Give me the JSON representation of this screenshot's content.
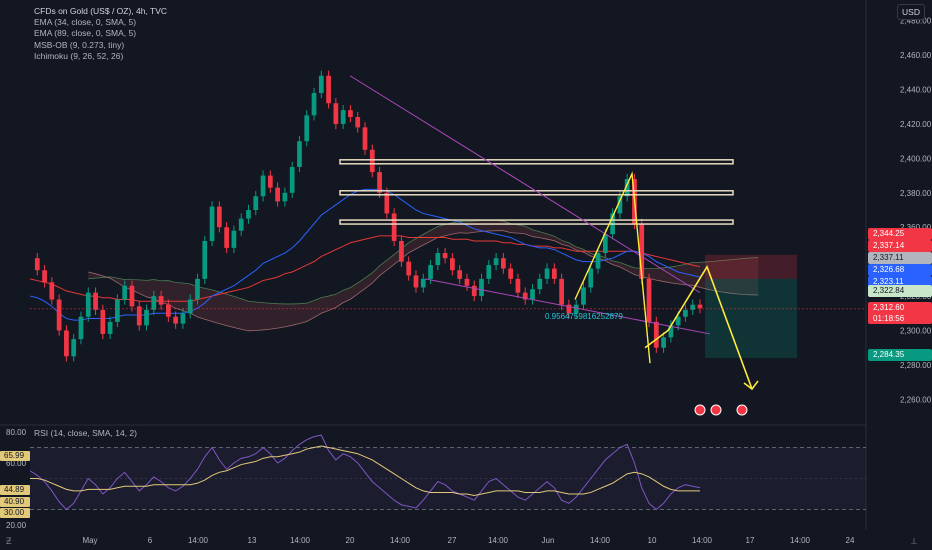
{
  "legend": {
    "title": "CFDs on Gold (US$ / OZ), 4h, TVC",
    "indicators": [
      "EMA (34, close, 0, SMA, 5)",
      "EMA (89, close, 0, SMA, 5)",
      "MSB-OB (9, 0.273, tiny)",
      "Ichimoku (9, 26, 52, 26)"
    ]
  },
  "currency": "USD",
  "rsi_title": "RSI (14, close, SMA, 14, 2)",
  "annotation": "0.9564759816252879",
  "price_tags": {
    "t1": "2,344.25",
    "t2": "2,337.14",
    "t3": "2,337.11",
    "t4": "2,326.68",
    "t5": "2,323.11",
    "t6": "2,322.84",
    "t7_price": "2,312.60",
    "t7_time": "01:18:56",
    "t8": "2,284.35"
  },
  "rsi_tags": {
    "a": "65.99",
    "b": "44.89",
    "c": "40.90",
    "d": "30.00"
  },
  "colors": {
    "bg": "#131722",
    "up": "#089981",
    "down": "#f23645",
    "ema34": "#2962ff",
    "ema89": "#e53935",
    "cloud_a": "#3a4a3a",
    "cloud_b": "#4a2a33",
    "proj": "#ffeb3b",
    "rsi": "#7e57c2",
    "rsi_ma": "#e2c97a",
    "wedge": "#ab47bc"
  },
  "chart_data": {
    "type": "line",
    "title": "CFDs on Gold (US$ / OZ), 4h, TVC",
    "y_ticks": [
      2260,
      2280,
      2300,
      2320,
      2340,
      2360,
      2380,
      2400,
      2420,
      2440,
      2460,
      2480
    ],
    "y_tick_labels": [
      "2,260.00",
      "2,280.00",
      "2,300.00",
      "2,320.00",
      "2,340.00",
      "2,360.00",
      "2,380.00",
      "2,400.00",
      "2,420.00",
      "2,440.00",
      "2,460.00",
      "2,480.00"
    ],
    "ylim": [
      2248,
      2492
    ],
    "x_tick_labels": [
      "May",
      "6",
      "14:00",
      "13",
      "14:00",
      "20",
      "14:00",
      "27",
      "14:00",
      "Jun",
      "14:00",
      "10",
      "14:00",
      "17",
      "14:00",
      "24"
    ],
    "price_series": [
      2342,
      2335,
      2328,
      2318,
      2300,
      2285,
      2295,
      2308,
      2322,
      2312,
      2298,
      2305,
      2318,
      2326,
      2314,
      2303,
      2312,
      2320,
      2315,
      2308,
      2304,
      2310,
      2318,
      2330,
      2352,
      2372,
      2360,
      2348,
      2358,
      2365,
      2370,
      2378,
      2390,
      2383,
      2375,
      2380,
      2395,
      2410,
      2425,
      2438,
      2448,
      2432,
      2420,
      2428,
      2424,
      2418,
      2405,
      2392,
      2380,
      2368,
      2352,
      2340,
      2332,
      2325,
      2330,
      2338,
      2345,
      2342,
      2335,
      2330,
      2326,
      2320,
      2330,
      2338,
      2342,
      2336,
      2330,
      2322,
      2318,
      2324,
      2330,
      2336,
      2330,
      2315,
      2310,
      2315,
      2325,
      2336,
      2345,
      2356,
      2368,
      2378,
      2388,
      2362,
      2330,
      2305,
      2290,
      2296,
      2303,
      2308,
      2312,
      2315,
      2313
    ],
    "ema34": [
      2320,
      2319,
      2317,
      2314,
      2310,
      2307,
      2306,
      2306,
      2307,
      2307,
      2307,
      2307,
      2308,
      2309,
      2309,
      2309,
      2309,
      2310,
      2310,
      2310,
      2310,
      2310,
      2311,
      2313,
      2316,
      2320,
      2322,
      2324,
      2326,
      2329,
      2332,
      2335,
      2339,
      2341,
      2343,
      2345,
      2348,
      2352,
      2357,
      2362,
      2367,
      2370,
      2373,
      2376,
      2379,
      2381,
      2382,
      2382,
      2382,
      2381,
      2379,
      2376,
      2373,
      2370,
      2368,
      2367,
      2366,
      2365,
      2364,
      2363,
      2361,
      2359,
      2358,
      2357,
      2356,
      2355,
      2354,
      2352,
      2350,
      2349,
      2348,
      2348,
      2347,
      2345,
      2343,
      2341,
      2340,
      2340,
      2340,
      2341,
      2342,
      2344,
      2346,
      2346,
      2345,
      2343,
      2340,
      2338,
      2336,
      2334,
      2333,
      2332,
      2331
    ],
    "ema89": [
      2330,
      2329,
      2328,
      2327,
      2325,
      2323,
      2322,
      2321,
      2320,
      2320,
      2319,
      2319,
      2318,
      2318,
      2318,
      2317,
      2317,
      2317,
      2317,
      2317,
      2317,
      2317,
      2317,
      2318,
      2319,
      2320,
      2321,
      2322,
      2323,
      2324,
      2325,
      2327,
      2329,
      2330,
      2331,
      2333,
      2334,
      2336,
      2338,
      2340,
      2343,
      2345,
      2347,
      2349,
      2351,
      2352,
      2353,
      2354,
      2355,
      2355,
      2355,
      2355,
      2354,
      2354,
      2354,
      2354,
      2354,
      2354,
      2353,
      2353,
      2353,
      2352,
      2352,
      2352,
      2352,
      2351,
      2351,
      2350,
      2350,
      2349,
      2349,
      2349,
      2348,
      2348,
      2347,
      2346,
      2346,
      2346,
      2346,
      2346,
      2346,
      2346,
      2346,
      2346,
      2345,
      2344,
      2343,
      2342,
      2341,
      2340,
      2339,
      2338,
      2337
    ],
    "sr_levels": [
      2398,
      2380,
      2363
    ],
    "projection": [
      [
        2312,
        2312
      ],
      [
        2338,
        2330
      ],
      [
        2265,
        2270
      ]
    ],
    "rsi": {
      "ylim": [
        20,
        80
      ],
      "ticks": [
        80,
        60,
        20
      ],
      "levels": [
        30,
        70
      ],
      "values": [
        55,
        52,
        48,
        42,
        35,
        30,
        34,
        42,
        50,
        46,
        40,
        44,
        50,
        54,
        48,
        42,
        46,
        51,
        48,
        44,
        42,
        45,
        50,
        56,
        64,
        70,
        62,
        56,
        60,
        63,
        64,
        66,
        70,
        66,
        60,
        63,
        68,
        72,
        75,
        77,
        78,
        68,
        62,
        66,
        64,
        60,
        54,
        48,
        44,
        40,
        36,
        33,
        32,
        31,
        36,
        42,
        48,
        46,
        42,
        40,
        38,
        36,
        42,
        48,
        50,
        46,
        42,
        38,
        36,
        40,
        44,
        48,
        44,
        36,
        34,
        38,
        44,
        50,
        56,
        62,
        66,
        70,
        72,
        60,
        44,
        34,
        30,
        34,
        40,
        44,
        46,
        45,
        44
      ],
      "ma": [
        50,
        50,
        49,
        47,
        45,
        43,
        42,
        42,
        43,
        43,
        43,
        43,
        44,
        45,
        45,
        45,
        45,
        46,
        46,
        46,
        46,
        46,
        46,
        47,
        49,
        52,
        54,
        55,
        57,
        59,
        60,
        61,
        63,
        64,
        64,
        65,
        66,
        67,
        69,
        70,
        71,
        70,
        69,
        68,
        67,
        66,
        64,
        62,
        59,
        56,
        53,
        50,
        47,
        44,
        42,
        41,
        41,
        41,
        41,
        40,
        40,
        39,
        40,
        41,
        42,
        42,
        42,
        42,
        41,
        41,
        41,
        42,
        42,
        41,
        40,
        40,
        40,
        41,
        43,
        45,
        47,
        50,
        53,
        54,
        53,
        51,
        48,
        45,
        43,
        42,
        42,
        42,
        42
      ]
    }
  }
}
